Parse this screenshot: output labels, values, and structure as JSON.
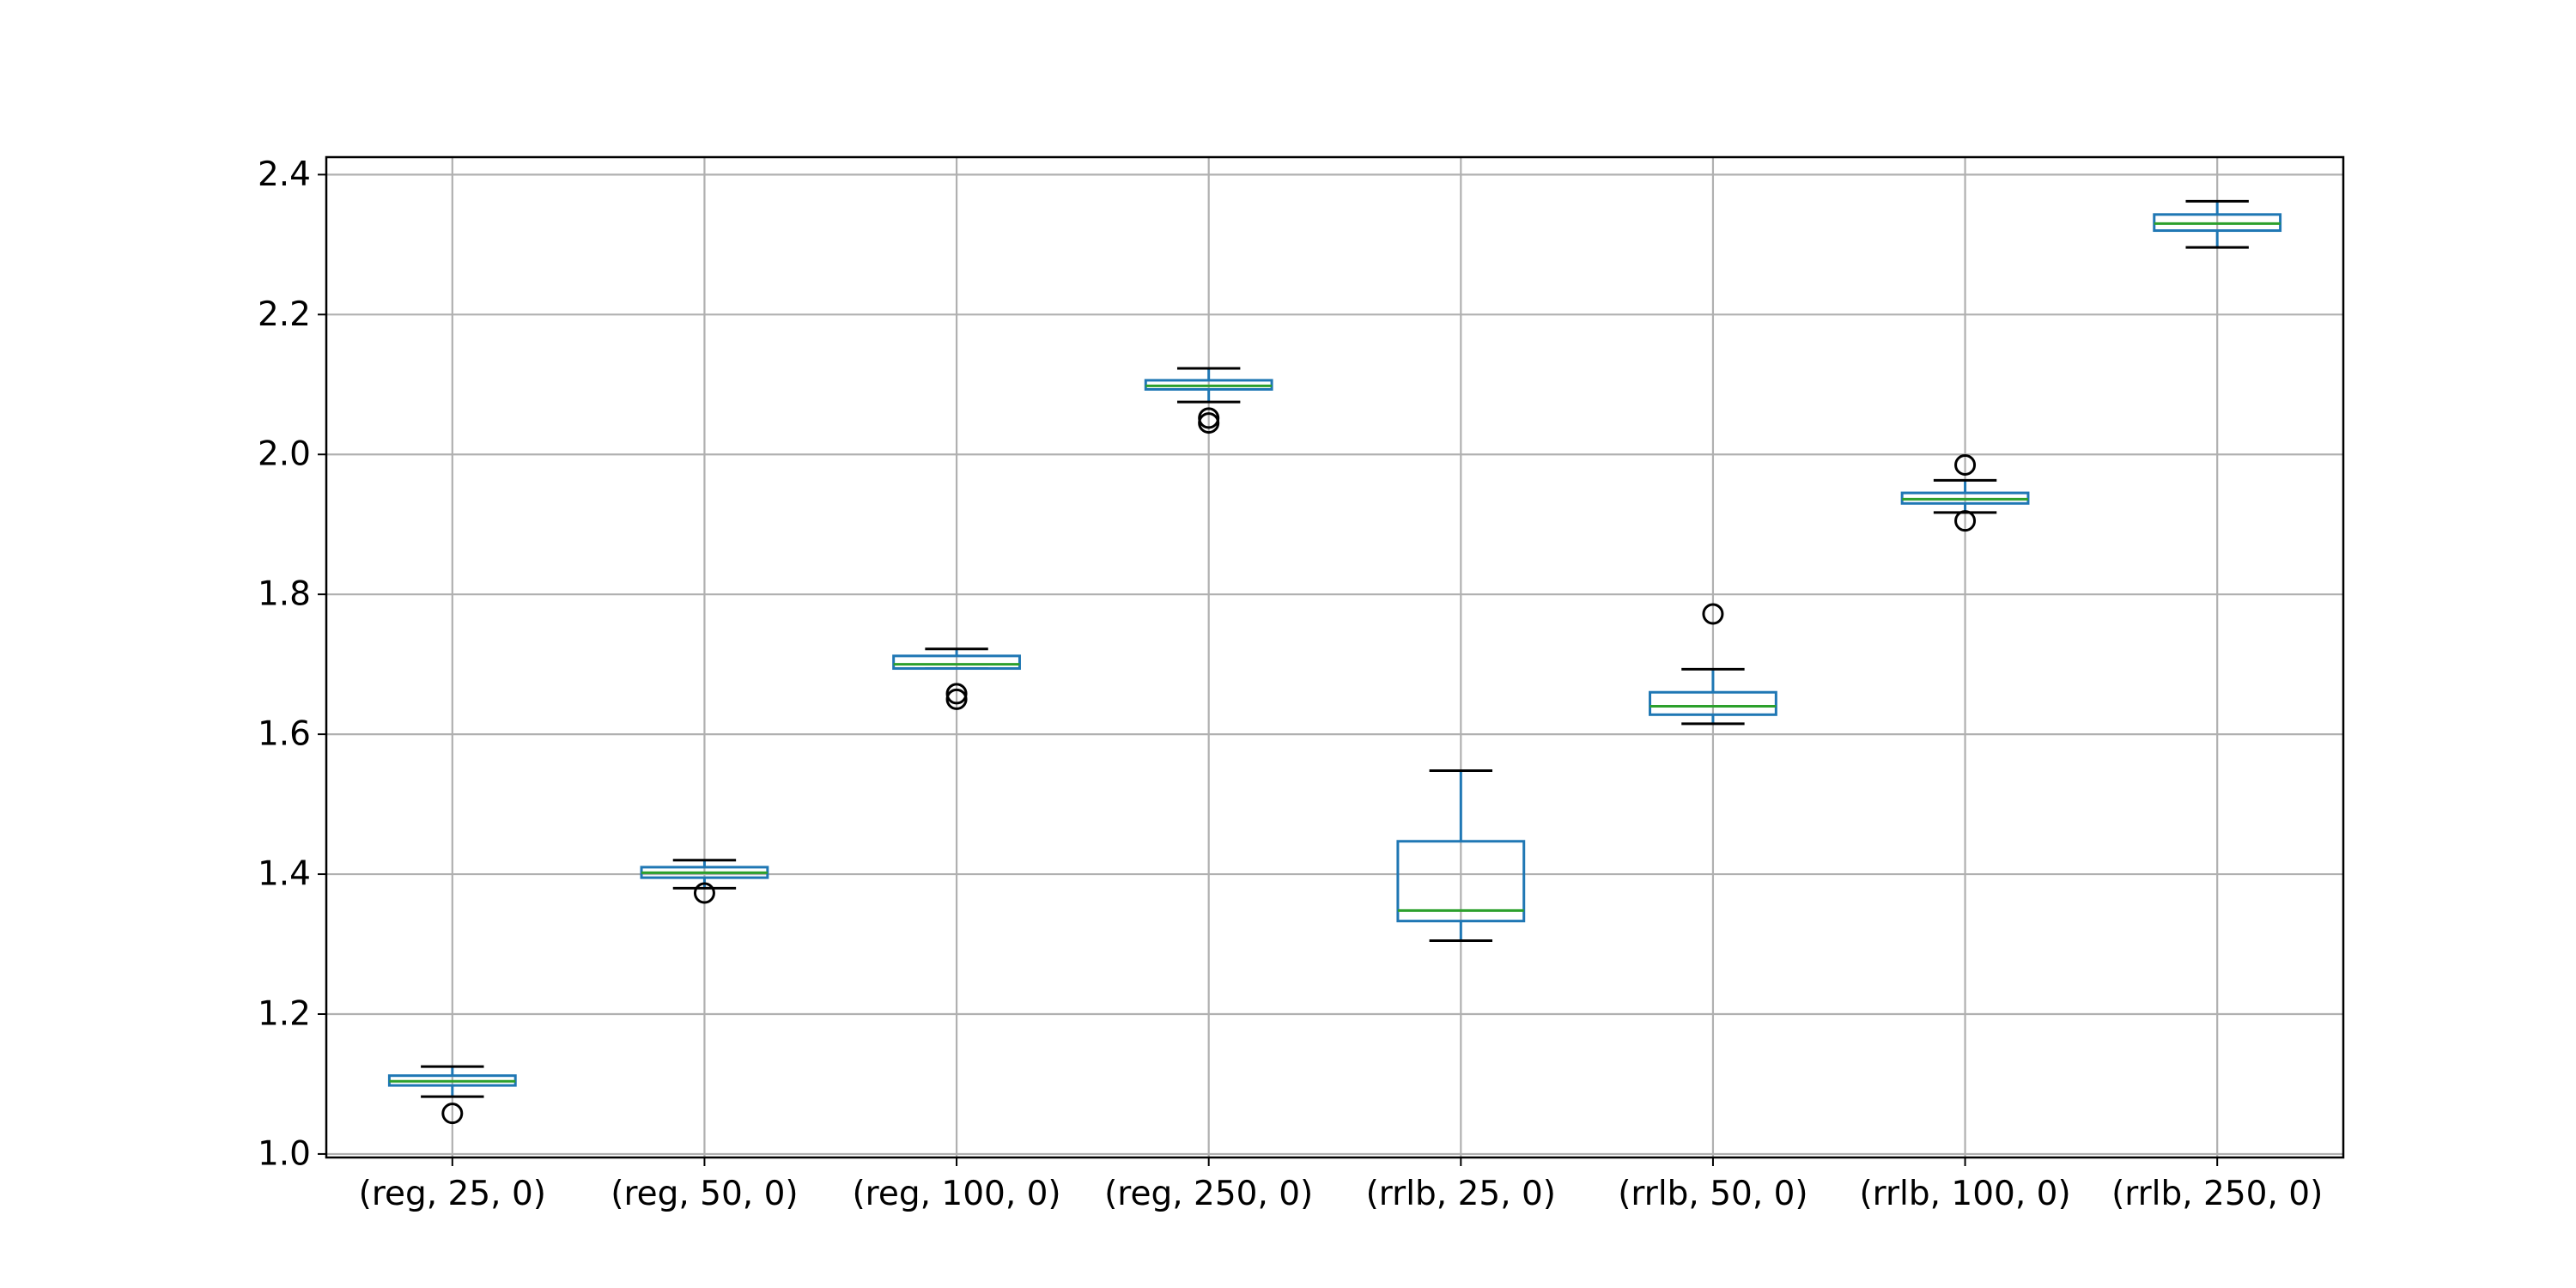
{
  "chart_data": {
    "type": "boxplot",
    "title": "",
    "xlabel": "",
    "ylabel": "",
    "ylim": [
      0.995,
      2.425
    ],
    "yticks": [
      1.0,
      1.2,
      1.4,
      1.6,
      1.8,
      2.0,
      2.2,
      2.4
    ],
    "ytick_labels": [
      "1.0",
      "1.2",
      "1.4",
      "1.6",
      "1.8",
      "2.0",
      "2.2",
      "2.4"
    ],
    "grid": true,
    "categories": [
      "(reg, 25, 0)",
      "(reg, 50, 0)",
      "(reg, 100, 0)",
      "(reg, 250, 0)",
      "(rrlb, 25, 0)",
      "(rrlb, 50, 0)",
      "(rrlb, 100, 0)",
      "(rrlb, 250, 0)"
    ],
    "boxes": [
      {
        "whislo": 1.082,
        "q1": 1.098,
        "med": 1.104,
        "q3": 1.112,
        "whishi": 1.125,
        "fliers": [
          1.058
        ]
      },
      {
        "whislo": 1.38,
        "q1": 1.395,
        "med": 1.402,
        "q3": 1.41,
        "whishi": 1.42,
        "fliers": [
          1.373
        ]
      },
      {
        "whislo": 1.694,
        "q1": 1.694,
        "med": 1.7,
        "q3": 1.712,
        "whishi": 1.722,
        "fliers": [
          1.65,
          1.658
        ]
      },
      {
        "whislo": 2.075,
        "q1": 2.093,
        "med": 2.098,
        "q3": 2.106,
        "whishi": 2.123,
        "fliers": [
          2.045,
          2.052
        ]
      },
      {
        "whislo": 1.305,
        "q1": 1.333,
        "med": 1.348,
        "q3": 1.447,
        "whishi": 1.548,
        "fliers": []
      },
      {
        "whislo": 1.615,
        "q1": 1.628,
        "med": 1.64,
        "q3": 1.66,
        "whishi": 1.693,
        "fliers": [
          1.772
        ]
      },
      {
        "whislo": 1.917,
        "q1": 1.93,
        "med": 1.936,
        "q3": 1.945,
        "whishi": 1.963,
        "fliers": [
          1.905,
          1.985
        ]
      },
      {
        "whislo": 2.296,
        "q1": 2.32,
        "med": 2.33,
        "q3": 2.343,
        "whishi": 2.362,
        "fliers": []
      }
    ],
    "colors": {
      "box": "#1f77b4",
      "median": "#2ca02c",
      "whisker": "#1f77b4",
      "cap": "#000000",
      "flier": "#000000",
      "grid": "#b0b0b0",
      "axes": "#000000"
    }
  }
}
